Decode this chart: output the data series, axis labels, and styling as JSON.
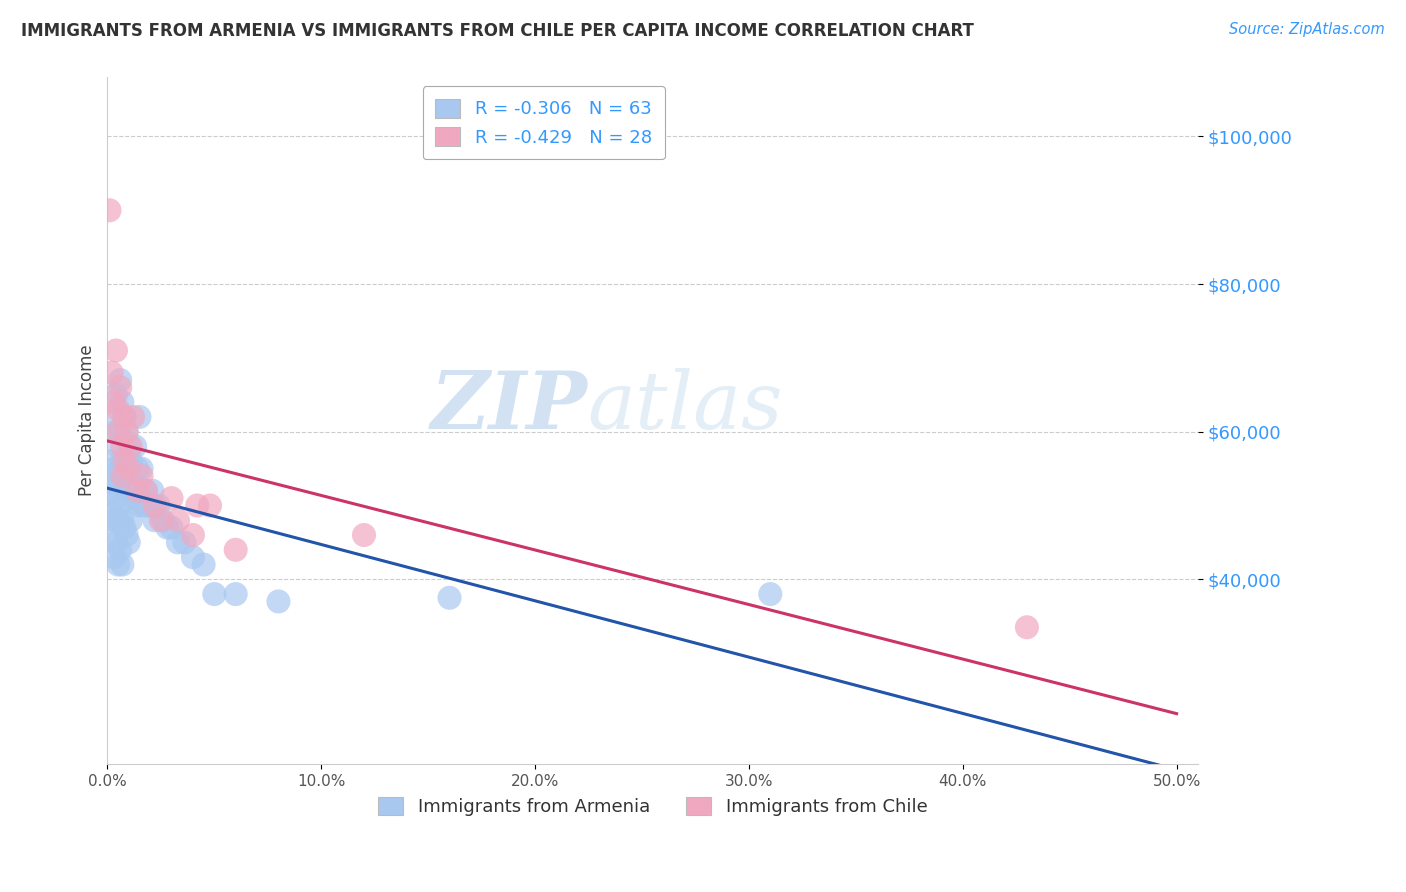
{
  "title": "IMMIGRANTS FROM ARMENIA VS IMMIGRANTS FROM CHILE PER CAPITA INCOME CORRELATION CHART",
  "source": "Source: ZipAtlas.com",
  "ylabel": "Per Capita Income",
  "legend_line1": "R = -0.306   N = 63",
  "legend_line2": "R = -0.429   N = 28",
  "armenia_color": "#a8c8f0",
  "armenia_line_color": "#2255aa",
  "chile_color": "#f0a8c0",
  "chile_line_color": "#cc3366",
  "watermark_zip": "ZIP",
  "watermark_atlas": "atlas",
  "yticks": [
    40000,
    60000,
    80000,
    100000
  ],
  "ytick_labels": [
    "$40,000",
    "$60,000",
    "$80,000",
    "$100,000"
  ],
  "ylim": [
    15000,
    108000
  ],
  "xlim": [
    0.0,
    0.51
  ],
  "xticks": [
    0.0,
    0.1,
    0.2,
    0.3,
    0.4,
    0.5
  ],
  "xtick_labels": [
    "0.0%",
    "10.0%",
    "20.0%",
    "30.0%",
    "40.0%",
    "50.0%"
  ],
  "armenia_x": [
    0.001,
    0.001,
    0.002,
    0.002,
    0.002,
    0.003,
    0.003,
    0.003,
    0.003,
    0.004,
    0.004,
    0.004,
    0.004,
    0.005,
    0.005,
    0.005,
    0.005,
    0.006,
    0.006,
    0.006,
    0.006,
    0.006,
    0.007,
    0.007,
    0.007,
    0.007,
    0.008,
    0.008,
    0.008,
    0.009,
    0.009,
    0.009,
    0.01,
    0.01,
    0.01,
    0.011,
    0.011,
    0.012,
    0.013,
    0.013,
    0.014,
    0.015,
    0.015,
    0.016,
    0.017,
    0.018,
    0.019,
    0.02,
    0.021,
    0.022,
    0.024,
    0.026,
    0.028,
    0.03,
    0.033,
    0.036,
    0.04,
    0.045,
    0.05,
    0.06,
    0.08,
    0.16,
    0.31
  ],
  "armenia_y": [
    46000,
    53000,
    52000,
    49000,
    56000,
    62000,
    55000,
    43000,
    48000,
    60000,
    65000,
    51000,
    45000,
    58000,
    53000,
    48000,
    42000,
    67000,
    60000,
    55000,
    50000,
    44000,
    64000,
    56000,
    48000,
    42000,
    62000,
    55000,
    47000,
    60000,
    53000,
    46000,
    58000,
    51000,
    45000,
    56000,
    48000,
    53000,
    58000,
    51000,
    55000,
    62000,
    50000,
    55000,
    50000,
    52000,
    50000,
    50000,
    52000,
    48000,
    50000,
    48000,
    47000,
    47000,
    45000,
    45000,
    43000,
    42000,
    38000,
    38000,
    37000,
    37500,
    38000
  ],
  "chile_x": [
    0.001,
    0.002,
    0.003,
    0.004,
    0.005,
    0.005,
    0.006,
    0.007,
    0.007,
    0.008,
    0.008,
    0.009,
    0.01,
    0.011,
    0.012,
    0.014,
    0.016,
    0.018,
    0.022,
    0.025,
    0.03,
    0.033,
    0.04,
    0.042,
    0.048,
    0.06,
    0.12,
    0.43
  ],
  "chile_y": [
    90000,
    68000,
    64000,
    71000,
    60000,
    63000,
    66000,
    58000,
    54000,
    62000,
    56000,
    60000,
    55000,
    58000,
    62000,
    52000,
    54000,
    52000,
    50000,
    48000,
    51000,
    48000,
    46000,
    50000,
    50000,
    44000,
    46000,
    33500
  ]
}
